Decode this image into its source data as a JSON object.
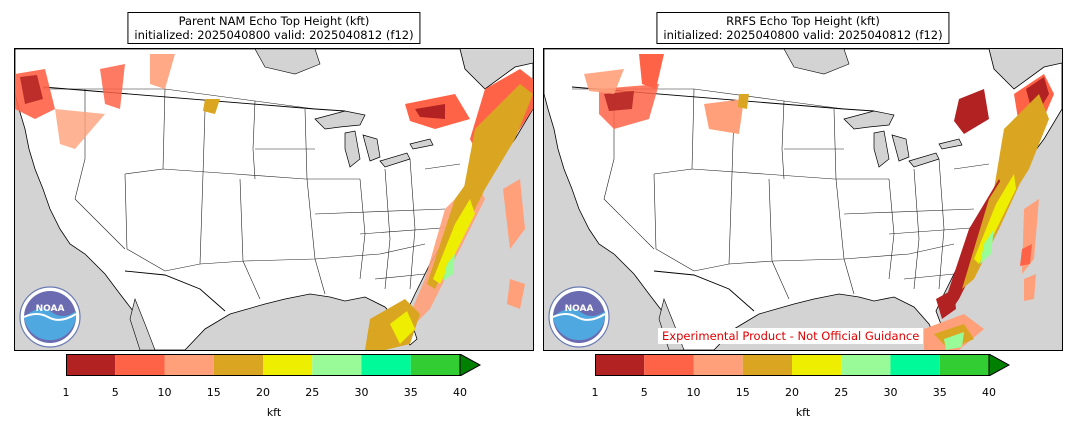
{
  "left_panel": {
    "title_line1": "Parent NAM Echo Top Height (kft)",
    "title_line2": "initialized: 2025040800 valid: 2025040812 (f12)"
  },
  "right_panel": {
    "title_line1": "RRFS Echo Top Height (kft)",
    "title_line2": "initialized: 2025040800 valid: 2025040812 (f12)",
    "disclaimer": "Experimental Product - Not Official Guidance"
  },
  "logo_text": "NOAA",
  "colorbar": {
    "unit_label": "kft",
    "ticks": [
      "1",
      "5",
      "10",
      "15",
      "20",
      "25",
      "30",
      "35",
      "40"
    ],
    "colors": [
      "#b22222",
      "#ff6347",
      "#ffa07a",
      "#daa520",
      "#eeee00",
      "#98fb98",
      "#00fa9a",
      "#32cd32"
    ],
    "extend_color": "#008000"
  },
  "map_colors": {
    "ocean": "#d3d3d3",
    "land": "#ffffff",
    "lakes": "#d3d3d3"
  }
}
